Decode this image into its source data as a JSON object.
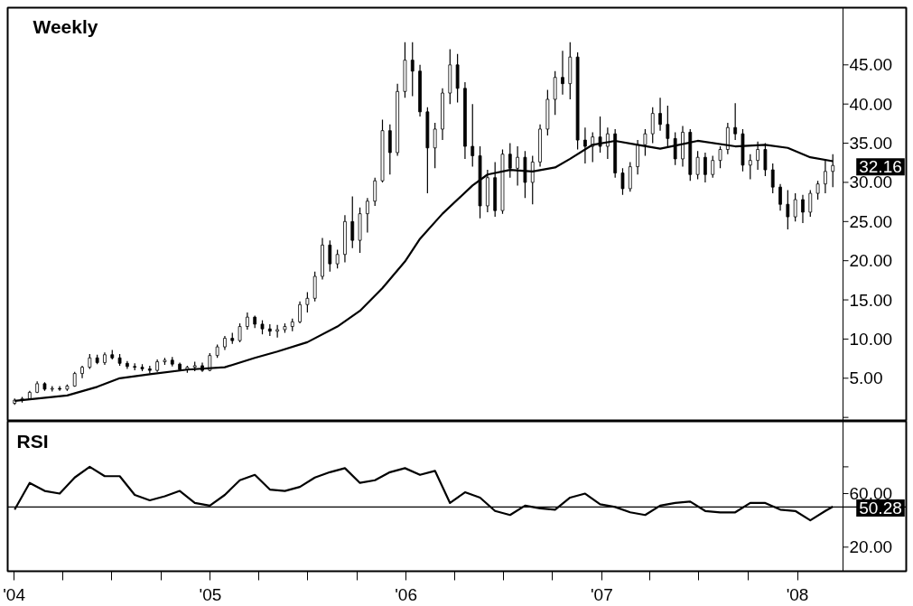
{
  "chart_data": [
    {
      "type": "candlestick",
      "title": "Weekly",
      "x": [
        "2004-01-02",
        "2004-01-16",
        "2004-01-30",
        "2004-02-13",
        "2004-02-27",
        "2004-03-12",
        "2004-03-26",
        "2004-04-09",
        "2004-04-23",
        "2004-05-07",
        "2004-05-21",
        "2004-06-04",
        "2004-06-18",
        "2004-07-02",
        "2004-07-16",
        "2004-07-30",
        "2004-08-13",
        "2004-08-27",
        "2004-09-10",
        "2004-09-24",
        "2004-10-08",
        "2004-10-22",
        "2004-11-05",
        "2004-11-19",
        "2004-12-03",
        "2004-12-17",
        "2004-12-31",
        "2005-01-14",
        "2005-01-28",
        "2005-02-11",
        "2005-02-25",
        "2005-03-11",
        "2005-03-25",
        "2005-04-08",
        "2005-04-22",
        "2005-05-06",
        "2005-05-20",
        "2005-06-03",
        "2005-06-17",
        "2005-07-01",
        "2005-07-15",
        "2005-07-29",
        "2005-08-12",
        "2005-08-26",
        "2005-09-09",
        "2005-09-23",
        "2005-10-07",
        "2005-10-21",
        "2005-11-04",
        "2005-11-18",
        "2005-12-02",
        "2005-12-16",
        "2005-12-30",
        "2006-01-13",
        "2006-01-27",
        "2006-02-10",
        "2006-02-24",
        "2006-03-10",
        "2006-03-24",
        "2006-04-07",
        "2006-04-21",
        "2006-05-05",
        "2006-05-19",
        "2006-06-02",
        "2006-06-16",
        "2006-06-30",
        "2006-07-14",
        "2006-07-28",
        "2006-08-11",
        "2006-08-25",
        "2006-09-08",
        "2006-09-22",
        "2006-10-06",
        "2006-10-20",
        "2006-11-03",
        "2006-11-17",
        "2006-12-01",
        "2006-12-15",
        "2006-12-29",
        "2007-01-12",
        "2007-01-26",
        "2007-02-09",
        "2007-02-23",
        "2007-03-09",
        "2007-03-23",
        "2007-04-06",
        "2007-04-20",
        "2007-05-04",
        "2007-05-18",
        "2007-06-01",
        "2007-06-15",
        "2007-06-29",
        "2007-07-13",
        "2007-07-27",
        "2007-08-10",
        "2007-08-24",
        "2007-09-07",
        "2007-09-21",
        "2007-10-05",
        "2007-10-19",
        "2007-11-02",
        "2007-11-16",
        "2007-11-30",
        "2007-12-14",
        "2007-12-28",
        "2008-01-11",
        "2008-01-25",
        "2008-02-08",
        "2008-02-22",
        "2008-03-07"
      ],
      "ohlc": [
        [
          1.8,
          2.4,
          1.6,
          2.2
        ],
        [
          2.2,
          2.6,
          1.9,
          2.4
        ],
        [
          2.4,
          3.4,
          2.3,
          3.2
        ],
        [
          3.2,
          4.6,
          3.1,
          4.3
        ],
        [
          4.3,
          4.5,
          3.4,
          3.6
        ],
        [
          3.6,
          4.0,
          3.3,
          3.7
        ],
        [
          3.7,
          4.0,
          3.4,
          3.6
        ],
        [
          3.6,
          4.2,
          3.4,
          4.0
        ],
        [
          4.0,
          5.8,
          3.9,
          5.6
        ],
        [
          5.6,
          6.6,
          5.0,
          6.4
        ],
        [
          6.4,
          8.1,
          6.2,
          7.6
        ],
        [
          7.6,
          8.0,
          6.8,
          7.0
        ],
        [
          7.0,
          8.3,
          6.7,
          8.0
        ],
        [
          8.0,
          8.6,
          7.4,
          7.6
        ],
        [
          7.6,
          8.1,
          6.6,
          6.9
        ],
        [
          6.9,
          7.2,
          6.2,
          6.5
        ],
        [
          6.5,
          6.9,
          6.0,
          6.4
        ],
        [
          6.4,
          6.8,
          5.9,
          6.2
        ],
        [
          6.2,
          6.6,
          5.6,
          6.0
        ],
        [
          6.0,
          7.4,
          5.8,
          7.1
        ],
        [
          7.1,
          7.6,
          6.7,
          7.3
        ],
        [
          7.3,
          7.7,
          6.5,
          6.8
        ],
        [
          6.8,
          7.0,
          5.9,
          6.1
        ],
        [
          6.1,
          6.6,
          5.7,
          6.4
        ],
        [
          6.4,
          7.1,
          5.9,
          6.6
        ],
        [
          6.6,
          7.0,
          5.8,
          6.0
        ],
        [
          6.0,
          8.2,
          5.9,
          7.9
        ],
        [
          7.9,
          9.3,
          7.6,
          9.0
        ],
        [
          9.0,
          10.4,
          8.6,
          10.1
        ],
        [
          10.1,
          10.8,
          9.4,
          9.8
        ],
        [
          9.8,
          12.0,
          9.6,
          11.6
        ],
        [
          11.6,
          13.4,
          11.2,
          12.8
        ],
        [
          12.8,
          13.0,
          11.4,
          11.9
        ],
        [
          11.9,
          12.4,
          10.6,
          11.3
        ],
        [
          11.3,
          11.9,
          10.4,
          11.0
        ],
        [
          11.0,
          11.8,
          10.2,
          11.2
        ],
        [
          11.2,
          12.0,
          10.8,
          11.6
        ],
        [
          11.6,
          12.6,
          11.0,
          12.2
        ],
        [
          12.2,
          14.8,
          12.0,
          14.4
        ],
        [
          14.4,
          16.0,
          13.4,
          15.2
        ],
        [
          15.2,
          18.6,
          14.8,
          18.0
        ],
        [
          18.0,
          22.9,
          17.6,
          22.0
        ],
        [
          22.0,
          22.6,
          18.6,
          19.6
        ],
        [
          19.6,
          21.4,
          19.0,
          20.8
        ],
        [
          20.8,
          25.8,
          19.8,
          25.0
        ],
        [
          25.0,
          28.2,
          21.6,
          22.6
        ],
        [
          22.6,
          26.8,
          21.0,
          26.0
        ],
        [
          26.0,
          28.0,
          23.6,
          27.6
        ],
        [
          27.6,
          30.6,
          27.0,
          30.2
        ],
        [
          30.2,
          38.0,
          30.0,
          36.6
        ],
        [
          36.6,
          37.4,
          31.0,
          33.8
        ],
        [
          33.8,
          42.6,
          33.4,
          41.6
        ],
        [
          41.6,
          47.9,
          40.8,
          45.6
        ],
        [
          45.6,
          47.9,
          41.0,
          44.2
        ],
        [
          44.2,
          45.0,
          38.4,
          39.0
        ],
        [
          39.0,
          39.6,
          28.6,
          34.4
        ],
        [
          34.4,
          37.6,
          31.8,
          36.8
        ],
        [
          36.8,
          42.0,
          35.4,
          41.4
        ],
        [
          41.4,
          47.0,
          40.0,
          45.0
        ],
        [
          45.0,
          46.4,
          40.2,
          42.0
        ],
        [
          42.0,
          42.8,
          33.0,
          34.6
        ],
        [
          34.6,
          40.0,
          32.0,
          33.4
        ],
        [
          33.4,
          34.6,
          25.4,
          27.0
        ],
        [
          27.0,
          31.6,
          26.2,
          30.6
        ],
        [
          30.6,
          32.6,
          25.6,
          26.4
        ],
        [
          26.4,
          34.2,
          26.0,
          33.6
        ],
        [
          33.6,
          35.0,
          30.6,
          31.8
        ],
        [
          31.8,
          34.6,
          29.6,
          33.2
        ],
        [
          33.2,
          34.0,
          28.0,
          30.0
        ],
        [
          30.0,
          33.4,
          27.2,
          32.6
        ],
        [
          32.6,
          37.4,
          32.0,
          36.8
        ],
        [
          36.8,
          41.8,
          36.0,
          40.6
        ],
        [
          40.6,
          44.2,
          38.6,
          43.4
        ],
        [
          43.4,
          46.8,
          41.2,
          42.6
        ],
        [
          42.6,
          47.9,
          40.6,
          46.0
        ],
        [
          46.0,
          46.6,
          34.2,
          35.4
        ],
        [
          35.4,
          37.0,
          32.4,
          34.6
        ],
        [
          34.6,
          36.4,
          32.6,
          35.8
        ],
        [
          35.8,
          38.4,
          33.8,
          34.6
        ],
        [
          34.6,
          37.0,
          33.0,
          36.2
        ],
        [
          36.2,
          36.8,
          30.6,
          31.2
        ],
        [
          31.2,
          31.8,
          28.4,
          29.2
        ],
        [
          29.2,
          32.6,
          28.8,
          32.0
        ],
        [
          32.0,
          35.4,
          31.0,
          34.8
        ],
        [
          34.8,
          36.8,
          33.4,
          36.2
        ],
        [
          36.2,
          39.6,
          35.0,
          38.8
        ],
        [
          38.8,
          40.8,
          36.6,
          37.4
        ],
        [
          37.4,
          39.8,
          34.6,
          35.6
        ],
        [
          35.6,
          36.4,
          32.2,
          33.0
        ],
        [
          33.0,
          37.2,
          32.0,
          36.4
        ],
        [
          36.4,
          36.8,
          30.2,
          31.0
        ],
        [
          31.0,
          34.0,
          30.4,
          33.2
        ],
        [
          33.2,
          33.8,
          30.0,
          31.0
        ],
        [
          31.0,
          33.4,
          30.6,
          32.8
        ],
        [
          32.8,
          34.6,
          31.8,
          34.2
        ],
        [
          34.2,
          37.6,
          33.6,
          37.0
        ],
        [
          37.0,
          40.1,
          35.4,
          36.2
        ],
        [
          36.2,
          36.8,
          31.4,
          32.2
        ],
        [
          32.2,
          33.6,
          30.4,
          32.8
        ],
        [
          32.8,
          35.2,
          31.6,
          34.2
        ],
        [
          34.2,
          35.0,
          30.8,
          31.6
        ],
        [
          31.6,
          32.4,
          28.6,
          29.4
        ],
        [
          29.4,
          29.8,
          26.4,
          27.2
        ],
        [
          27.2,
          29.0,
          24.0,
          25.6
        ],
        [
          25.6,
          28.6,
          25.0,
          27.8
        ],
        [
          27.8,
          28.4,
          24.8,
          26.2
        ],
        [
          26.2,
          29.0,
          25.6,
          28.6
        ],
        [
          28.6,
          30.2,
          27.8,
          29.8
        ],
        [
          29.8,
          33.0,
          28.6,
          31.4
        ],
        [
          31.4,
          33.6,
          29.4,
          32.16
        ]
      ],
      "color": "#000000",
      "series": [
        {
          "type": "line",
          "color": "#000000",
          "x": [
            "2004-01-02",
            "2004-04-09",
            "2004-06-04",
            "2004-07-16",
            "2004-09-10",
            "2004-11-19",
            "2005-01-28",
            "2005-03-25",
            "2005-05-06",
            "2005-07-01",
            "2005-08-26",
            "2005-10-07",
            "2005-11-18",
            "2005-12-30",
            "2006-01-27",
            "2006-03-10",
            "2006-05-05",
            "2006-06-02",
            "2006-07-14",
            "2006-08-25",
            "2006-10-06",
            "2006-11-03",
            "2006-12-15",
            "2007-01-26",
            "2007-03-09",
            "2007-04-20",
            "2007-06-29",
            "2007-09-07",
            "2007-11-02",
            "2007-12-14",
            "2008-01-25",
            "2008-03-07"
          ],
          "values": [
            2.1,
            2.8,
            3.9,
            5.0,
            5.5,
            6.1,
            6.4,
            7.6,
            8.4,
            9.6,
            11.6,
            13.6,
            16.5,
            19.9,
            22.8,
            26.0,
            29.6,
            31.0,
            31.6,
            31.4,
            31.9,
            33.0,
            34.8,
            35.3,
            34.8,
            34.3,
            35.3,
            34.6,
            34.8,
            34.4,
            33.2,
            32.7
          ]
        }
      ],
      "xlim": [
        "2003-12-20",
        "2008-03-26"
      ],
      "ylim": [
        -0.5,
        52.3
      ],
      "yticks": [
        {
          "value": 0,
          "label": null
        },
        {
          "value": 5,
          "label": "5.00"
        },
        {
          "value": 10,
          "label": "10.00"
        },
        {
          "value": 15,
          "label": "15.00"
        },
        {
          "value": 20,
          "label": "20.00"
        },
        {
          "value": 25,
          "label": "25.00"
        },
        {
          "value": 30,
          "label": "30.00"
        },
        {
          "value": 35,
          "label": "35.00"
        },
        {
          "value": 40,
          "label": "40.00"
        },
        {
          "value": 45,
          "label": "45.00"
        }
      ],
      "tick_labels": "y",
      "annotations": [
        {
          "text": "32.16",
          "x": "2008-03-07",
          "y": 32.16
        }
      ]
    },
    {
      "type": "line",
      "title": "RSI",
      "x": [
        "2004-01-02",
        "2004-01-30",
        "2004-02-27",
        "2004-03-26",
        "2004-04-23",
        "2004-05-21",
        "2004-06-18",
        "2004-07-16",
        "2004-08-13",
        "2004-09-10",
        "2004-10-08",
        "2004-11-05",
        "2004-12-03",
        "2004-12-31",
        "2005-01-28",
        "2005-02-25",
        "2005-03-25",
        "2005-04-22",
        "2005-05-20",
        "2005-06-17",
        "2005-07-15",
        "2005-08-12",
        "2005-09-09",
        "2005-10-07",
        "2005-11-04",
        "2005-12-02",
        "2005-12-30",
        "2006-01-27",
        "2006-02-24",
        "2006-03-24",
        "2006-04-21",
        "2006-05-19",
        "2006-06-16",
        "2006-07-14",
        "2006-08-11",
        "2006-09-08",
        "2006-10-06",
        "2006-11-03",
        "2006-12-01",
        "2006-12-29",
        "2007-01-26",
        "2007-02-23",
        "2007-03-23",
        "2007-04-20",
        "2007-05-18",
        "2007-06-15",
        "2007-07-13",
        "2007-08-10",
        "2007-09-07",
        "2007-10-05",
        "2007-11-02",
        "2007-11-30",
        "2007-12-28",
        "2008-01-25",
        "2008-02-22",
        "2008-03-07"
      ],
      "series": [
        {
          "color": "#000000",
          "values": [
            48,
            68,
            62,
            60,
            72,
            80,
            73,
            73,
            59,
            55,
            58,
            62,
            53,
            51,
            59,
            70,
            74,
            63,
            62,
            65,
            72,
            76,
            79,
            68,
            70,
            76,
            79,
            74,
            77,
            53,
            61,
            57,
            47,
            44,
            51,
            49,
            48,
            57,
            60,
            52,
            50,
            46,
            44,
            51,
            53,
            54,
            47,
            46,
            46,
            53,
            53,
            48,
            47,
            40,
            47,
            50.28
          ]
        }
      ],
      "xlim": [
        "2003-12-20",
        "2008-03-26"
      ],
      "xticks": [
        {
          "value": "2004-01-01",
          "label": "'04"
        },
        {
          "value": "2004-04-01",
          "label": null
        },
        {
          "value": "2004-07-01",
          "label": null
        },
        {
          "value": "2004-10-01",
          "label": null
        },
        {
          "value": "2005-01-01",
          "label": "'05"
        },
        {
          "value": "2005-04-01",
          "label": null
        },
        {
          "value": "2005-07-01",
          "label": null
        },
        {
          "value": "2005-10-01",
          "label": null
        },
        {
          "value": "2006-01-01",
          "label": "'06"
        },
        {
          "value": "2006-04-01",
          "label": null
        },
        {
          "value": "2006-07-01",
          "label": null
        },
        {
          "value": "2006-10-01",
          "label": null
        },
        {
          "value": "2007-01-01",
          "label": "'07"
        },
        {
          "value": "2007-04-01",
          "label": null
        },
        {
          "value": "2007-07-01",
          "label": null
        },
        {
          "value": "2007-10-01",
          "label": null
        },
        {
          "value": "2008-01-01",
          "label": "'08"
        }
      ],
      "ylim": [
        2,
        114
      ],
      "yticks": [
        {
          "value": 20,
          "label": "20.00"
        },
        {
          "value": 60,
          "label": "60.00"
        },
        {
          "value": 80,
          "label": null
        }
      ],
      "ref_lines": [
        {
          "axis": "y",
          "value": 50,
          "color": "#000000"
        }
      ],
      "annotations": [
        {
          "text": "50.28",
          "x": "2008-03-07",
          "y": 50.28
        }
      ]
    }
  ]
}
